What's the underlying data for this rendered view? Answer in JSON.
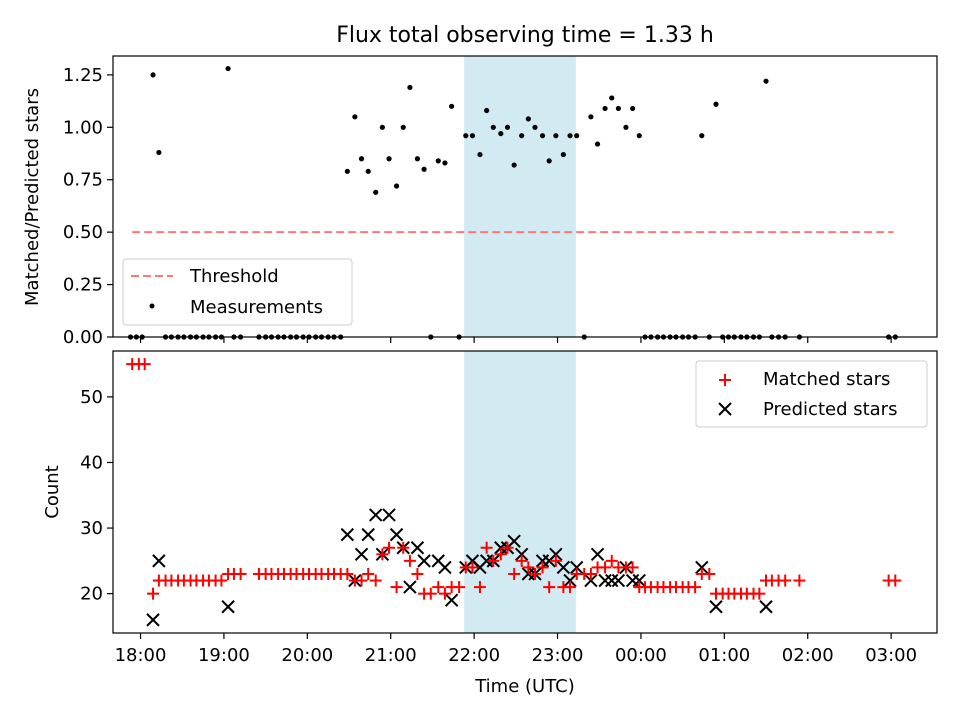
{
  "title": "Flux total observing time = 1.33 h",
  "colors": {
    "threshold": "#ff7777",
    "band": "#add8e6",
    "matched": "#ff0000",
    "predicted": "#000000",
    "measure": "#000000"
  },
  "chart_data": [
    {
      "type": "scatter",
      "ylabel": "Matched/Predicted stars",
      "ylim": [
        0,
        1.34
      ],
      "xlim": [
        17.67,
        27.55
      ],
      "yticks": [
        "0.00",
        "0.25",
        "0.50",
        "0.75",
        "1.00",
        "1.25"
      ],
      "highlight_band": [
        21.88,
        23.22
      ],
      "threshold": {
        "name": "Threshold",
        "value": 0.5,
        "x_range": [
          17.9,
          27.03
        ]
      },
      "legend": [
        "Threshold",
        "Measurements"
      ],
      "legend_position": "lower-left",
      "series": [
        {
          "name": "Measurements",
          "points": [
            [
              17.88,
              0
            ],
            [
              17.95,
              0
            ],
            [
              18.02,
              0
            ],
            [
              18.15,
              1.25
            ],
            [
              18.22,
              0.88
            ],
            [
              18.3,
              0
            ],
            [
              18.37,
              0
            ],
            [
              18.45,
              0
            ],
            [
              18.52,
              0
            ],
            [
              18.6,
              0
            ],
            [
              18.67,
              0
            ],
            [
              18.75,
              0
            ],
            [
              18.82,
              0
            ],
            [
              18.9,
              0
            ],
            [
              18.97,
              0
            ],
            [
              19.05,
              1.28
            ],
            [
              19.12,
              0
            ],
            [
              19.2,
              0
            ],
            [
              19.42,
              0
            ],
            [
              19.5,
              0
            ],
            [
              19.57,
              0
            ],
            [
              19.65,
              0
            ],
            [
              19.72,
              0
            ],
            [
              19.8,
              0
            ],
            [
              19.87,
              0
            ],
            [
              19.95,
              0
            ],
            [
              20.02,
              0
            ],
            [
              20.1,
              0
            ],
            [
              20.17,
              0
            ],
            [
              20.25,
              0
            ],
            [
              20.32,
              0
            ],
            [
              20.4,
              0
            ],
            [
              20.48,
              0.79
            ],
            [
              20.57,
              1.05
            ],
            [
              20.65,
              0.85
            ],
            [
              20.73,
              0.79
            ],
            [
              20.82,
              0.69
            ],
            [
              20.9,
              1.0
            ],
            [
              20.98,
              0.85
            ],
            [
              21.07,
              0.72
            ],
            [
              21.15,
              1.0
            ],
            [
              21.23,
              1.19
            ],
            [
              21.32,
              0.85
            ],
            [
              21.4,
              0.8
            ],
            [
              21.48,
              0
            ],
            [
              21.57,
              0.84
            ],
            [
              21.65,
              0.83
            ],
            [
              21.73,
              1.1
            ],
            [
              21.82,
              0
            ],
            [
              21.9,
              0.96
            ],
            [
              21.98,
              0.96
            ],
            [
              22.07,
              0.87
            ],
            [
              22.15,
              1.08
            ],
            [
              22.23,
              1.0
            ],
            [
              22.32,
              0.97
            ],
            [
              22.4,
              1.0
            ],
            [
              22.48,
              0.82
            ],
            [
              22.57,
              0.96
            ],
            [
              22.65,
              1.04
            ],
            [
              22.73,
              1.0
            ],
            [
              22.82,
              0.96
            ],
            [
              22.9,
              0.84
            ],
            [
              22.98,
              0.96
            ],
            [
              23.07,
              0.87
            ],
            [
              23.15,
              0.96
            ],
            [
              23.23,
              0.96
            ],
            [
              23.32,
              0
            ],
            [
              23.4,
              1.05
            ],
            [
              23.48,
              0.92
            ],
            [
              23.57,
              1.09
            ],
            [
              23.65,
              1.14
            ],
            [
              23.73,
              1.09
            ],
            [
              23.82,
              1.0
            ],
            [
              23.9,
              1.09
            ],
            [
              23.98,
              0.96
            ],
            [
              24.05,
              0
            ],
            [
              24.12,
              0
            ],
            [
              24.2,
              0
            ],
            [
              24.27,
              0
            ],
            [
              24.35,
              0
            ],
            [
              24.42,
              0
            ],
            [
              24.5,
              0
            ],
            [
              24.57,
              0
            ],
            [
              24.65,
              0
            ],
            [
              24.73,
              0.96
            ],
            [
              24.82,
              0
            ],
            [
              24.9,
              1.11
            ],
            [
              24.98,
              0
            ],
            [
              25.05,
              0
            ],
            [
              25.12,
              0
            ],
            [
              25.2,
              0
            ],
            [
              25.27,
              0
            ],
            [
              25.35,
              0
            ],
            [
              25.42,
              0
            ],
            [
              25.5,
              1.22
            ],
            [
              25.57,
              0
            ],
            [
              25.65,
              0
            ],
            [
              25.73,
              0
            ],
            [
              25.9,
              0
            ],
            [
              26.97,
              0
            ],
            [
              27.05,
              0
            ]
          ]
        }
      ]
    },
    {
      "type": "scatter",
      "xlabel": "Time (UTC)",
      "ylabel": "Count",
      "ylim": [
        14,
        57
      ],
      "xlim": [
        17.67,
        27.55
      ],
      "yticks": [
        "20",
        "30",
        "40",
        "50"
      ],
      "xticks": [
        "18:00",
        "19:00",
        "20:00",
        "21:00",
        "22:00",
        "23:00",
        "00:00",
        "01:00",
        "02:00",
        "03:00"
      ],
      "highlight_band": [
        21.88,
        23.22
      ],
      "legend": [
        "Matched stars",
        "Predicted stars"
      ],
      "legend_position": "upper-right",
      "series": [
        {
          "name": "Matched stars",
          "points": [
            [
              17.9,
              55
            ],
            [
              17.98,
              55
            ],
            [
              18.05,
              55
            ],
            [
              18.15,
              20
            ],
            [
              18.22,
              22
            ],
            [
              18.3,
              22
            ],
            [
              18.37,
              22
            ],
            [
              18.45,
              22
            ],
            [
              18.52,
              22
            ],
            [
              18.6,
              22
            ],
            [
              18.67,
              22
            ],
            [
              18.75,
              22
            ],
            [
              18.82,
              22
            ],
            [
              18.9,
              22
            ],
            [
              18.97,
              22
            ],
            [
              19.05,
              23
            ],
            [
              19.12,
              23
            ],
            [
              19.2,
              23
            ],
            [
              19.42,
              23
            ],
            [
              19.5,
              23
            ],
            [
              19.57,
              23
            ],
            [
              19.65,
              23
            ],
            [
              19.72,
              23
            ],
            [
              19.8,
              23
            ],
            [
              19.87,
              23
            ],
            [
              19.95,
              23
            ],
            [
              20.02,
              23
            ],
            [
              20.1,
              23
            ],
            [
              20.17,
              23
            ],
            [
              20.25,
              23
            ],
            [
              20.32,
              23
            ],
            [
              20.4,
              23
            ],
            [
              20.48,
              23
            ],
            [
              20.57,
              22
            ],
            [
              20.65,
              22
            ],
            [
              20.73,
              23
            ],
            [
              20.82,
              22
            ],
            [
              20.9,
              26
            ],
            [
              20.98,
              27
            ],
            [
              21.07,
              21
            ],
            [
              21.15,
              27
            ],
            [
              21.23,
              25
            ],
            [
              21.32,
              23
            ],
            [
              21.4,
              20
            ],
            [
              21.48,
              20
            ],
            [
              21.57,
              21
            ],
            [
              21.65,
              20
            ],
            [
              21.73,
              21
            ],
            [
              21.82,
              21
            ],
            [
              21.9,
              24
            ],
            [
              21.98,
              24
            ],
            [
              22.07,
              21
            ],
            [
              22.15,
              27
            ],
            [
              22.23,
              25
            ],
            [
              22.32,
              26
            ],
            [
              22.4,
              27
            ],
            [
              22.48,
              23
            ],
            [
              22.57,
              25
            ],
            [
              22.65,
              24
            ],
            [
              22.73,
              23
            ],
            [
              22.82,
              24
            ],
            [
              22.9,
              21
            ],
            [
              22.98,
              25
            ],
            [
              23.07,
              21
            ],
            [
              23.15,
              21
            ],
            [
              23.23,
              23
            ],
            [
              23.32,
              23
            ],
            [
              23.4,
              23
            ],
            [
              23.48,
              24
            ],
            [
              23.57,
              24
            ],
            [
              23.65,
              25
            ],
            [
              23.73,
              24
            ],
            [
              23.82,
              24
            ],
            [
              23.9,
              24
            ],
            [
              23.98,
              21
            ],
            [
              24.05,
              21
            ],
            [
              24.12,
              21
            ],
            [
              24.2,
              21
            ],
            [
              24.27,
              21
            ],
            [
              24.35,
              21
            ],
            [
              24.42,
              21
            ],
            [
              24.5,
              21
            ],
            [
              24.57,
              21
            ],
            [
              24.65,
              21
            ],
            [
              24.73,
              23
            ],
            [
              24.82,
              23
            ],
            [
              24.9,
              20
            ],
            [
              24.98,
              20
            ],
            [
              25.05,
              20
            ],
            [
              25.12,
              20
            ],
            [
              25.2,
              20
            ],
            [
              25.27,
              20
            ],
            [
              25.35,
              20
            ],
            [
              25.42,
              20
            ],
            [
              25.5,
              22
            ],
            [
              25.57,
              22
            ],
            [
              25.65,
              22
            ],
            [
              25.73,
              22
            ],
            [
              25.9,
              22
            ],
            [
              26.97,
              22
            ],
            [
              27.05,
              22
            ]
          ]
        },
        {
          "name": "Predicted stars",
          "points": [
            [
              18.15,
              16
            ],
            [
              18.22,
              25
            ],
            [
              19.05,
              18
            ],
            [
              20.48,
              29
            ],
            [
              20.57,
              22
            ],
            [
              20.65,
              26
            ],
            [
              20.73,
              29
            ],
            [
              20.82,
              32
            ],
            [
              20.9,
              26
            ],
            [
              20.98,
              32
            ],
            [
              21.07,
              29
            ],
            [
              21.15,
              27
            ],
            [
              21.23,
              21
            ],
            [
              21.32,
              27
            ],
            [
              21.4,
              25
            ],
            [
              21.57,
              25
            ],
            [
              21.65,
              24
            ],
            [
              21.73,
              19
            ],
            [
              21.9,
              24
            ],
            [
              21.98,
              25
            ],
            [
              22.07,
              24
            ],
            [
              22.15,
              25
            ],
            [
              22.23,
              25
            ],
            [
              22.32,
              27
            ],
            [
              22.4,
              27
            ],
            [
              22.48,
              28
            ],
            [
              22.57,
              26
            ],
            [
              22.65,
              23
            ],
            [
              22.73,
              23
            ],
            [
              22.82,
              25
            ],
            [
              22.9,
              25
            ],
            [
              22.98,
              26
            ],
            [
              23.07,
              24
            ],
            [
              23.15,
              22
            ],
            [
              23.23,
              24
            ],
            [
              23.4,
              22
            ],
            [
              23.48,
              26
            ],
            [
              23.57,
              22
            ],
            [
              23.65,
              22
            ],
            [
              23.73,
              22
            ],
            [
              23.82,
              24
            ],
            [
              23.9,
              22
            ],
            [
              23.98,
              22
            ],
            [
              24.73,
              24
            ],
            [
              24.9,
              18
            ],
            [
              25.5,
              18
            ]
          ]
        }
      ]
    }
  ]
}
